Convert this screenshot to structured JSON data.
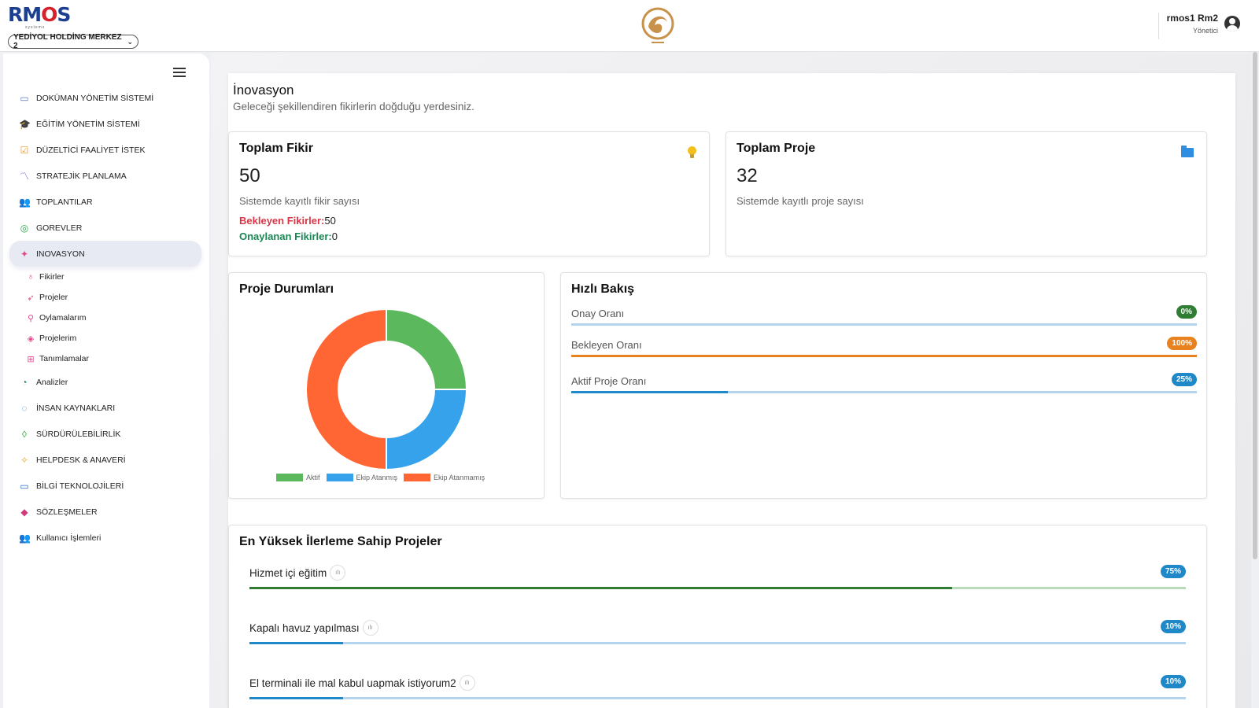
{
  "header": {
    "brand_prefix": "RM",
    "brand_o": "O",
    "brand_suffix": "S",
    "brand_sub": "systems",
    "company_select": "YEDİYOL HOLDİNG MERKEZ 2",
    "user_name": "rmos1 Rm2",
    "user_role": "Yönetici"
  },
  "sidebar": {
    "items": [
      {
        "label": "DOKÜMAN YÖNETİM SİSTEMİ",
        "icon": "folder-icon",
        "glyph": "▭",
        "color": "#5a7bd0"
      },
      {
        "label": "EĞİTİM YÖNETİM SİSTEMİ",
        "icon": "graduation-cap-icon",
        "glyph": "🎓",
        "color": "#3a6fd8"
      },
      {
        "label": "DÜZELTİCİ FAALİYET İSTEK",
        "icon": "clipboard-check-icon",
        "glyph": "☑",
        "color": "#e89a2a"
      },
      {
        "label": "STRATEJİK PLANLAMA",
        "icon": "chart-line-icon",
        "glyph": "〽",
        "color": "#5a5ad0"
      },
      {
        "label": "TOPLANTILAR",
        "icon": "users-icon",
        "glyph": "👥",
        "color": "#a45ac8"
      },
      {
        "label": "GOREVLER",
        "icon": "task-icon",
        "glyph": "◎",
        "color": "#2aa84a"
      },
      {
        "label": "INOVASYON",
        "icon": "sparkle-icon",
        "glyph": "✦",
        "color": "#e04a8a"
      }
    ],
    "sub_items": [
      {
        "label": "Fikirler",
        "icon": "lightbulb-icon",
        "glyph": "♁",
        "color": "#e04a8a"
      },
      {
        "label": "Projeler",
        "icon": "rocket-icon",
        "glyph": "➶",
        "color": "#e04a8a"
      },
      {
        "label": "Oylamalarım",
        "icon": "vote-icon",
        "glyph": "⚲",
        "color": "#e04a8a"
      },
      {
        "label": "Projelerim",
        "icon": "target-icon",
        "glyph": "◈",
        "color": "#e04a8a"
      },
      {
        "label": "Tanımlamalar",
        "icon": "folder-plus-icon",
        "glyph": "⊞",
        "color": "#e04a8a"
      }
    ],
    "items_after": [
      {
        "label": "Analizler",
        "icon": "analytics-icon",
        "glyph": "◔",
        "color": "#1a8a6a"
      },
      {
        "label": "İNSAN KAYNAKLARI",
        "icon": "people-cycle-icon",
        "glyph": "◌",
        "color": "#2a8ad0"
      },
      {
        "label": "SÜRDÜRÜLEBİLİRLİK",
        "icon": "leaf-icon",
        "glyph": "◊",
        "color": "#2aa84a"
      },
      {
        "label": "HELPDESK & ANAVERİ",
        "icon": "sparkles-icon",
        "glyph": "✧",
        "color": "#e0a820"
      },
      {
        "label": "BİLGİ TEKNOLOJİLERİ",
        "icon": "laptop-icon",
        "glyph": "▭",
        "color": "#2a6ad0"
      },
      {
        "label": "SÖZLEŞMELER",
        "icon": "tag-icon",
        "glyph": "◆",
        "color": "#d03a7a"
      },
      {
        "label": "Kullanıcı İşlemleri",
        "icon": "user-group-icon",
        "glyph": "👥",
        "color": "#e08a2a"
      }
    ]
  },
  "page": {
    "title": "İnovasyon",
    "subtitle": "Geleceği şekillendiren fikirlerin doğduğu yerdesiniz."
  },
  "cards": {
    "ideas": {
      "title": "Toplam Fikir",
      "value": "50",
      "desc": "Sistemde kayıtlı fikir sayısı",
      "pending_label": "Bekleyen Fikirler:",
      "pending_value": "50",
      "approved_label": "Onaylanan Fikirler:",
      "approved_value": "0"
    },
    "projects": {
      "title": "Toplam Proje",
      "value": "32",
      "desc": "Sistemde kayıtlı proje sayısı"
    }
  },
  "status_chart": {
    "title": "Proje Durumları"
  },
  "chart_data": {
    "type": "pie",
    "donut": true,
    "categories": [
      "Aktif",
      "Ekip Atanmış",
      "Ekip Atanmamış"
    ],
    "values": [
      8,
      8,
      16
    ],
    "colors": [
      "#5cb85c",
      "#36a2eb",
      "#ff6633"
    ],
    "legend_position": "bottom"
  },
  "quick_view": {
    "title": "Hızlı Bakış",
    "rows": [
      {
        "label": "Onay Oranı",
        "badge": "0%",
        "value": 0,
        "badge_color": "#2e7d32",
        "fill": "#2e7d32",
        "track": "#b3d4ec"
      },
      {
        "label": "Bekleyen Oranı",
        "badge": "100%",
        "value": 100,
        "badge_color": "#e8821e",
        "fill": "#e8821e",
        "track": "#b3d4ec"
      },
      {
        "label": "Aktif Proje Oranı",
        "badge": "25%",
        "value": 25,
        "badge_color": "#1e88c8",
        "fill": "#1e88c8",
        "track": "#b3d4ec"
      }
    ]
  },
  "top_projects": {
    "title": "En Yüksek İlerleme Sahip Projeler",
    "rows": [
      {
        "label": "Hizmet içi eğitim",
        "badge": "75%",
        "value": 75,
        "fill": "#2e7d32",
        "track": "#b9dbb9"
      },
      {
        "label": "Kapalı havuz yapılması",
        "badge": "10%",
        "value": 10,
        "fill": "#1e88c8",
        "track": "#b3d4ec"
      },
      {
        "label": "El terminali ile mal kabul uapmak istiyorum2",
        "badge": "10%",
        "value": 10,
        "fill": "#1e88c8",
        "track": "#b3d4ec"
      }
    ]
  }
}
